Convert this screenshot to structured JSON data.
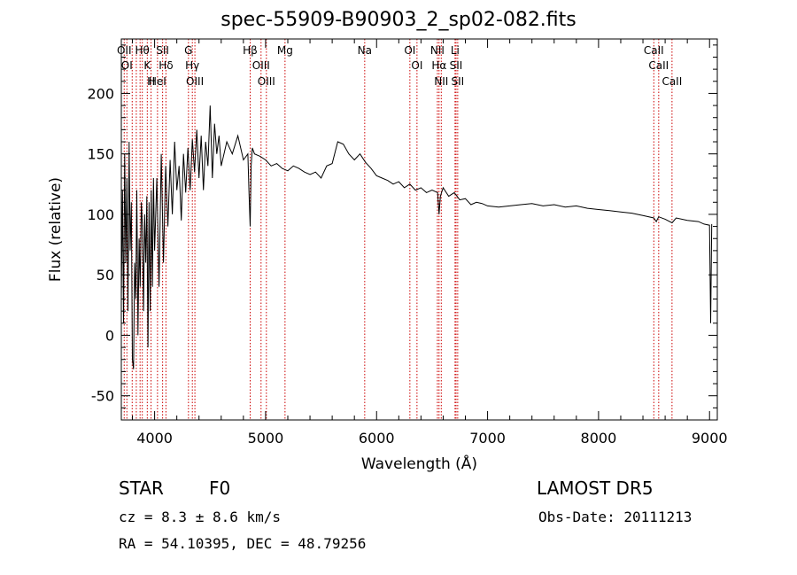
{
  "title": "spec-55909-B90903_2_sp02-082.fits",
  "info": {
    "object_class": "STAR",
    "subclass": "F0",
    "survey": "LAMOST DR5",
    "redshift_line": "cz = 8.3 ± 8.6 km/s",
    "obs_date_line": "Obs-Date: 20111213",
    "coords_line": "RA =  54.10395, DEC =  48.79256"
  },
  "colors": {
    "spectrum": "#000000",
    "line_marker": "#cc0000",
    "axes": "#000000"
  },
  "chart_data": {
    "type": "line",
    "title": "spec-55909-B90903_2_sp02-082.fits",
    "xlabel": "Wavelength (Å)",
    "ylabel": "Flux (relative)",
    "xlim": [
      3700,
      9070
    ],
    "ylim": [
      -70,
      245
    ],
    "xticks": [
      4000,
      5000,
      6000,
      7000,
      8000,
      9000
    ],
    "yticks": [
      -50,
      0,
      50,
      100,
      150,
      200
    ],
    "grid": false,
    "series": [
      {
        "x": [
          3700,
          3710,
          3720,
          3730,
          3740,
          3750,
          3760,
          3770,
          3780,
          3790,
          3800,
          3810,
          3820,
          3830,
          3840,
          3850,
          3860,
          3870,
          3880,
          3890,
          3900,
          3910,
          3920,
          3930,
          3940,
          3950,
          3960,
          3970,
          3980,
          3990,
          4000,
          4020,
          4040,
          4060,
          4080,
          4100,
          4120,
          4140,
          4160,
          4180,
          4200,
          4220,
          4240,
          4260,
          4280,
          4300,
          4320,
          4340,
          4360,
          4380,
          4400,
          4420,
          4440,
          4460,
          4480,
          4500,
          4520,
          4540,
          4560,
          4580,
          4600,
          4650,
          4700,
          4750,
          4800,
          4840,
          4850,
          4861,
          4870,
          4880,
          4900,
          4950,
          5000,
          5050,
          5100,
          5150,
          5200,
          5250,
          5300,
          5350,
          5400,
          5450,
          5500,
          5550,
          5600,
          5650,
          5700,
          5750,
          5800,
          5850,
          5900,
          5950,
          6000,
          6050,
          6100,
          6150,
          6200,
          6250,
          6300,
          6350,
          6400,
          6450,
          6500,
          6550,
          6563,
          6575,
          6600,
          6650,
          6700,
          6750,
          6800,
          6850,
          6900,
          6950,
          7000,
          7100,
          7200,
          7300,
          7400,
          7500,
          7600,
          7700,
          7800,
          7900,
          8000,
          8100,
          8200,
          8300,
          8400,
          8498,
          8520,
          8542,
          8600,
          8662,
          8700,
          8800,
          8900,
          8950,
          9000,
          9010,
          9020
        ],
        "values": [
          30,
          120,
          10,
          150,
          60,
          130,
          20,
          160,
          70,
          110,
          -20,
          -28,
          60,
          30,
          120,
          0,
          80,
          40,
          110,
          90,
          20,
          100,
          60,
          115,
          -10,
          110,
          20,
          120,
          40,
          130,
          70,
          130,
          40,
          150,
          60,
          140,
          90,
          145,
          100,
          160,
          120,
          140,
          95,
          150,
          118,
          155,
          120,
          162,
          135,
          170,
          130,
          165,
          120,
          160,
          140,
          190,
          130,
          175,
          150,
          165,
          140,
          160,
          150,
          165,
          145,
          150,
          120,
          90,
          140,
          155,
          150,
          148,
          145,
          140,
          142,
          138,
          136,
          140,
          138,
          135,
          133,
          135,
          130,
          140,
          142,
          160,
          158,
          150,
          145,
          150,
          143,
          138,
          132,
          130,
          128,
          125,
          127,
          122,
          125,
          120,
          122,
          118,
          120,
          118,
          100,
          115,
          122,
          115,
          118,
          112,
          113,
          108,
          110,
          109,
          107,
          106,
          107,
          108,
          109,
          107,
          108,
          106,
          107,
          105,
          104,
          103,
          102,
          101,
          99,
          97,
          94,
          98,
          96,
          93,
          97,
          95,
          94,
          92,
          91,
          10,
          92
        ]
      }
    ],
    "line_marks": [
      {
        "wl": 3726,
        "label": "OII"
      },
      {
        "wl": 3750,
        "label": "OI"
      },
      {
        "wl": 3798,
        "label": ""
      },
      {
        "wl": 3835,
        "label": ""
      },
      {
        "wl": 3869,
        "label": ""
      },
      {
        "wl": 3889,
        "label": "Hθ"
      },
      {
        "wl": 3934,
        "label": "K"
      },
      {
        "wl": 3968,
        "label": "H"
      },
      {
        "wl": 4026,
        "label": "HeI"
      },
      {
        "wl": 4072,
        "label": "SII"
      },
      {
        "wl": 4102,
        "label": "Hδ"
      },
      {
        "wl": 4305,
        "label": "G"
      },
      {
        "wl": 4340,
        "label": "Hγ"
      },
      {
        "wl": 4363,
        "label": "OIII"
      },
      {
        "wl": 4861,
        "label": "Hβ"
      },
      {
        "wl": 4959,
        "label": "OIII"
      },
      {
        "wl": 5007,
        "label": "OIII"
      },
      {
        "wl": 5175,
        "label": "Mg"
      },
      {
        "wl": 5893,
        "label": "Na"
      },
      {
        "wl": 6300,
        "label": "OI"
      },
      {
        "wl": 6364,
        "label": "OI"
      },
      {
        "wl": 6548,
        "label": "NII"
      },
      {
        "wl": 6563,
        "label": "Hα"
      },
      {
        "wl": 6583,
        "label": "NII"
      },
      {
        "wl": 6707,
        "label": "Li"
      },
      {
        "wl": 6716,
        "label": "SII"
      },
      {
        "wl": 6731,
        "label": "SII"
      },
      {
        "wl": 8498,
        "label": "CaII"
      },
      {
        "wl": 8542,
        "label": "CaII"
      },
      {
        "wl": 8662,
        "label": "CaII"
      }
    ]
  }
}
